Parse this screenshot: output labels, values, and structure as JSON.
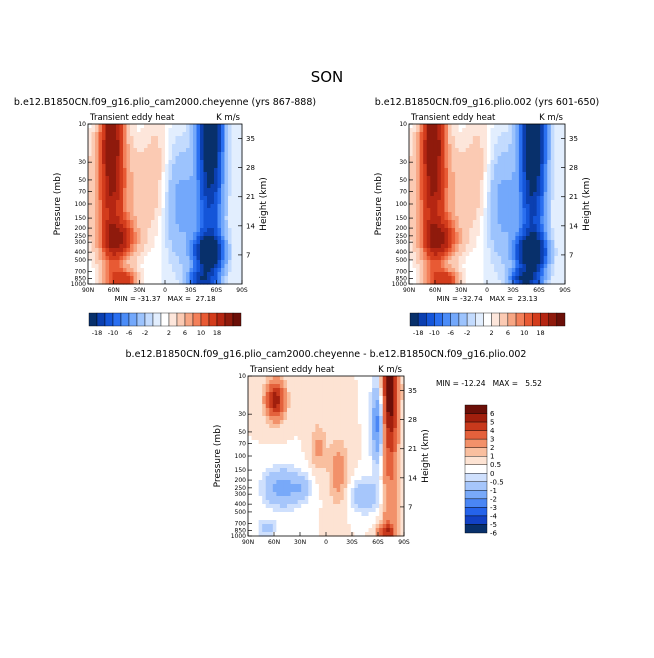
{
  "page": {
    "title": "SON"
  },
  "palette_full": [
    "#08306b",
    "#0b3fb0",
    "#1455d9",
    "#2a6ff0",
    "#4b8cf7",
    "#73a8fb",
    "#9cc3fd",
    "#c3dbfe",
    "#e2eefe",
    "#ffffff",
    "#fde6db",
    "#fbcab3",
    "#f7a684",
    "#f3805a",
    "#e85a34",
    "#d33c1c",
    "#b52612",
    "#8f1a0c",
    "#6b0f08"
  ],
  "palette_diff": [
    "#08306b",
    "#1241c4",
    "#2563eb",
    "#4a86f5",
    "#78a9f9",
    "#a6c6fb",
    "#cfe0fd",
    "#ffffff",
    "#fde3d3",
    "#f9bf9f",
    "#f2916a",
    "#e4613c",
    "#c8391c",
    "#a11f0d",
    "#6b0f08"
  ],
  "chart_data": [
    {
      "type": "heatmap",
      "title": "b.e12.B1850CN.f09_g16.plio_cam2000.cheyenne (yrs 867-888)",
      "left_label": "Transient eddy heat",
      "right_label": "K m/s",
      "xlabel": "",
      "ylabel": "Pressure (mb)",
      "y2label": "Height (km)",
      "x_ticks": [
        "90N",
        "60N",
        "30N",
        "0",
        "30S",
        "60S",
        "90S"
      ],
      "y_ticks": [
        "10",
        "30",
        "50",
        "70",
        "100",
        "150",
        "200",
        "250",
        "300",
        "400",
        "500",
        "700",
        "850",
        "1000"
      ],
      "y2_ticks": [
        "35",
        "28",
        "21",
        "14",
        "7"
      ],
      "stats_text": "MIN = -31.37   MAX =  27.18",
      "min": -31.37,
      "max": 27.18,
      "colorbar_labels": [
        "-18",
        "-10",
        "-6",
        "-2",
        "2",
        "6",
        "10",
        "18"
      ]
    },
    {
      "type": "heatmap",
      "title": "b.e12.B1850CN.f09_g16.plio.002 (yrs 601-650)",
      "left_label": "Transient eddy heat",
      "right_label": "K m/s",
      "xlabel": "",
      "ylabel": "Pressure (mb)",
      "y2label": "Height (km)",
      "x_ticks": [
        "90N",
        "60N",
        "30N",
        "0",
        "30S",
        "60S",
        "90S"
      ],
      "y_ticks": [
        "10",
        "30",
        "50",
        "70",
        "100",
        "150",
        "200",
        "250",
        "300",
        "400",
        "500",
        "700",
        "850",
        "1000"
      ],
      "y2_ticks": [
        "35",
        "28",
        "21",
        "14",
        "7"
      ],
      "stats_text": "MIN = -32.74   MAX =  23.13",
      "min": -32.74,
      "max": 23.13,
      "colorbar_labels": [
        "-18",
        "-10",
        "-6",
        "-2",
        "2",
        "6",
        "10",
        "18"
      ]
    },
    {
      "type": "heatmap",
      "title": "b.e12.B1850CN.f09_g16.plio_cam2000.cheyenne - b.e12.B1850CN.f09_g16.plio.002",
      "left_label": "Transient eddy heat",
      "right_label": "K m/s",
      "xlabel": "",
      "ylabel": "Pressure (mb)",
      "y2label": "Height (km)",
      "x_ticks": [
        "90N",
        "60N",
        "30N",
        "0",
        "30S",
        "60S",
        "90S"
      ],
      "y_ticks": [
        "10",
        "30",
        "50",
        "70",
        "100",
        "150",
        "200",
        "250",
        "300",
        "400",
        "500",
        "700",
        "850",
        "1000"
      ],
      "y2_ticks": [
        "35",
        "28",
        "21",
        "14",
        "7"
      ],
      "stats_text": "MIN = -12.24   MAX =   5.52",
      "min": -12.24,
      "max": 5.52,
      "colorbar_labels": [
        "6",
        "5",
        "4",
        "3",
        "2",
        "1",
        "0.5",
        "0",
        "-0.5",
        "-1",
        "-2",
        "-3",
        "-4",
        "-5",
        "-6"
      ]
    }
  ]
}
